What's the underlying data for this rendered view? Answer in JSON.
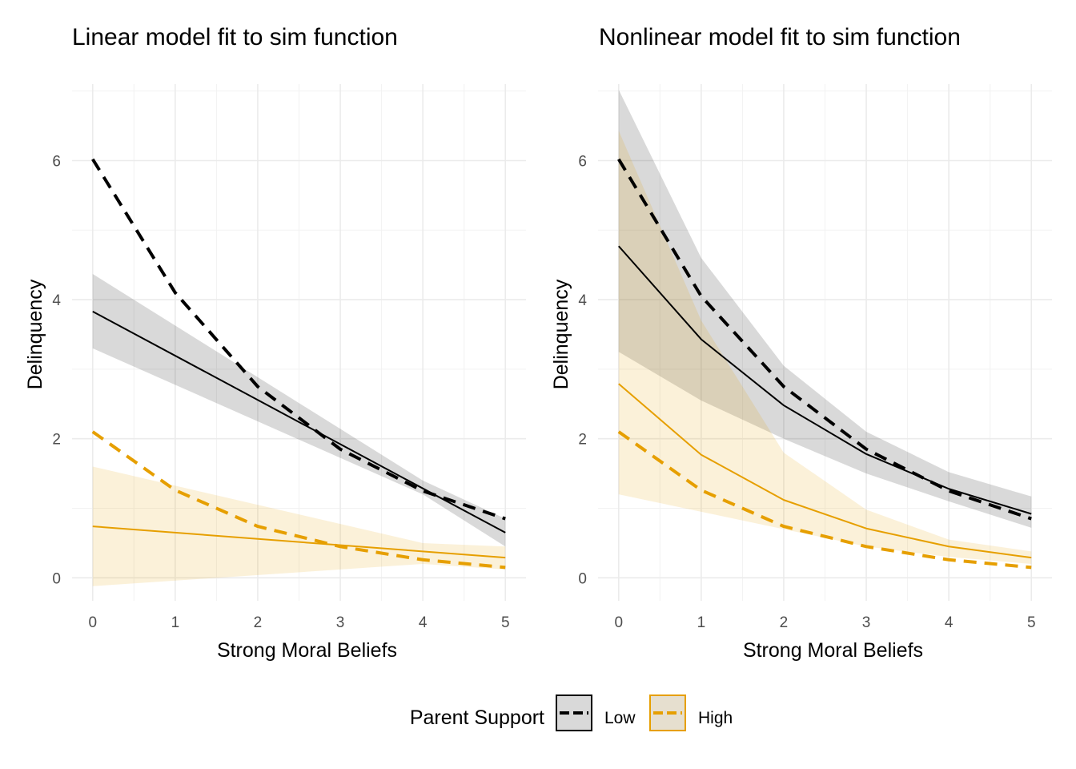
{
  "legend": {
    "title": "Parent Support",
    "entries": [
      {
        "label": "Low",
        "color": "#000000"
      },
      {
        "label": "High",
        "color": "#E69F00"
      }
    ]
  },
  "chart_data": [
    {
      "type": "line",
      "title": "Linear model fit to sim function",
      "xlabel": "Strong Moral Beliefs",
      "ylabel": "Delinquency",
      "xlim": [
        -0.25,
        5.25
      ],
      "ylim": [
        -0.33,
        7.1
      ],
      "xticks": [
        0,
        1,
        2,
        3,
        4,
        5
      ],
      "yticks": [
        0,
        2,
        4,
        6
      ],
      "grid": true,
      "series": [
        {
          "name": "Low",
          "color": "#000000",
          "style": "solid",
          "x": [
            0,
            5
          ],
          "y": [
            3.83,
            0.65
          ],
          "ribbon": {
            "x": [
              0,
              4,
              5
            ],
            "lower": [
              3.3,
              1.2,
              0.45
            ],
            "upper": [
              4.37,
              1.4,
              0.85
            ]
          }
        },
        {
          "name": "High",
          "color": "#E69F00",
          "style": "solid",
          "x": [
            0,
            5
          ],
          "y": [
            0.74,
            0.29
          ],
          "ribbon": {
            "x": [
              0,
              4,
              5
            ],
            "lower": [
              -0.12,
              0.2,
              0.12
            ],
            "upper": [
              1.6,
              0.5,
              0.45
            ]
          }
        },
        {
          "name": "Low",
          "color": "#000000",
          "style": "dashed",
          "x": [
            0,
            1,
            2,
            3,
            4,
            5
          ],
          "y": [
            6.02,
            4.1,
            2.75,
            1.85,
            1.25,
            0.85
          ]
        },
        {
          "name": "High",
          "color": "#E69F00",
          "style": "dashed",
          "x": [
            0,
            1,
            2,
            3,
            4,
            5
          ],
          "y": [
            2.1,
            1.26,
            0.74,
            0.45,
            0.26,
            0.15
          ]
        }
      ]
    },
    {
      "type": "line",
      "title": "Nonlinear model fit to sim function",
      "xlabel": "Strong Moral Beliefs",
      "ylabel": "Delinquency",
      "xlim": [
        -0.25,
        5.25
      ],
      "ylim": [
        -0.33,
        7.1
      ],
      "xticks": [
        0,
        1,
        2,
        3,
        4,
        5
      ],
      "yticks": [
        0,
        2,
        4,
        6
      ],
      "grid": true,
      "series": [
        {
          "name": "Low",
          "color": "#000000",
          "style": "solid",
          "x": [
            0,
            1,
            2,
            3,
            4,
            5
          ],
          "y": [
            4.77,
            3.43,
            2.48,
            1.78,
            1.28,
            0.92
          ],
          "ribbon": {
            "x": [
              0,
              1,
              2,
              3,
              4,
              5
            ],
            "lower": [
              3.25,
              2.55,
              2.0,
              1.5,
              1.1,
              0.72
            ],
            "upper": [
              7.02,
              4.6,
              3.05,
              2.1,
              1.52,
              1.17
            ]
          }
        },
        {
          "name": "High",
          "color": "#E69F00",
          "style": "solid",
          "x": [
            0,
            1,
            2,
            3,
            4,
            5
          ],
          "y": [
            2.79,
            1.77,
            1.12,
            0.71,
            0.45,
            0.29
          ],
          "ribbon": {
            "x": [
              0,
              1,
              2,
              3,
              4,
              5
            ],
            "lower": [
              1.2,
              0.95,
              0.7,
              0.45,
              0.3,
              0.2
            ],
            "upper": [
              6.43,
              3.7,
              1.8,
              0.98,
              0.55,
              0.38
            ]
          }
        },
        {
          "name": "Low",
          "color": "#000000",
          "style": "dashed",
          "x": [
            0,
            1,
            2,
            3,
            4,
            5
          ],
          "y": [
            6.02,
            4.05,
            2.75,
            1.85,
            1.25,
            0.85
          ]
        },
        {
          "name": "High",
          "color": "#E69F00",
          "style": "dashed",
          "x": [
            0,
            1,
            2,
            3,
            4,
            5
          ],
          "y": [
            2.1,
            1.26,
            0.74,
            0.45,
            0.26,
            0.15
          ]
        }
      ]
    }
  ]
}
